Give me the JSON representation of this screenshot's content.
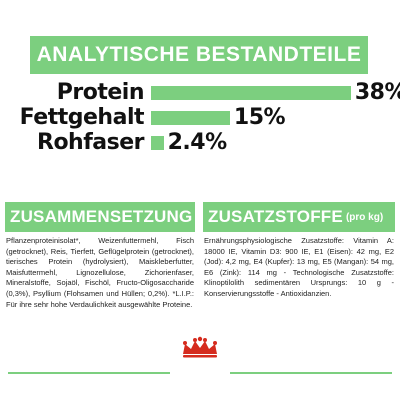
{
  "header": {
    "title": "ANALYTISCHE BESTANDTEILE"
  },
  "nutrients": [
    {
      "label": "Protein",
      "value": "38%",
      "percent": 38
    },
    {
      "label": "Fettgehalt",
      "value": "15%",
      "percent": 15
    },
    {
      "label": "Rohfaser",
      "value": "2.4%",
      "percent": 2.4
    }
  ],
  "composition": {
    "title": "ZUSAMMENSETZUNG",
    "text": "Pflanzenproteinisolat*, Weizenfuttermehl, Fisch (getrocknet), Reis, Tierfett, Geflügelprotein (getrocknet), tierisches Protein (hydrolysiert), Maiskleberfutter, Maisfuttermehl, Lignozellulose, Zichorienfaser, Mineralstoffe, Sojaöl, Fischöl, Fructo-Oligosaccharide (0,3%), Psyllium (Flohsamen und Hüllen; 0,2%). *L.I.P.: Für ihre sehr hohe Verdaulichkeit ausgewählte Proteine."
  },
  "additives": {
    "title": "ZUSATZSTOFFE",
    "subtitle": "(pro kg)",
    "text": "Ernährungsphysiologische Zusatzstoffe: Vitamin A: 18000 IE, Vitamin D3: 900 IE, E1 (Eisen): 42 mg, E2 (Jod): 4,2 mg, E4 (Kupfer): 13 mg, E5 (Mangan): 54 mg, E6 (Zink): 114 mg - Technologische Zusatzstoffe: Klinoptilolith sedimentären Ursprungs: 10 g - Konservierungsstoffe - Antioxidanzien."
  },
  "colors": {
    "accent": "#7ccf7f",
    "brand_red": "#d52b1e",
    "text": "#111111"
  }
}
